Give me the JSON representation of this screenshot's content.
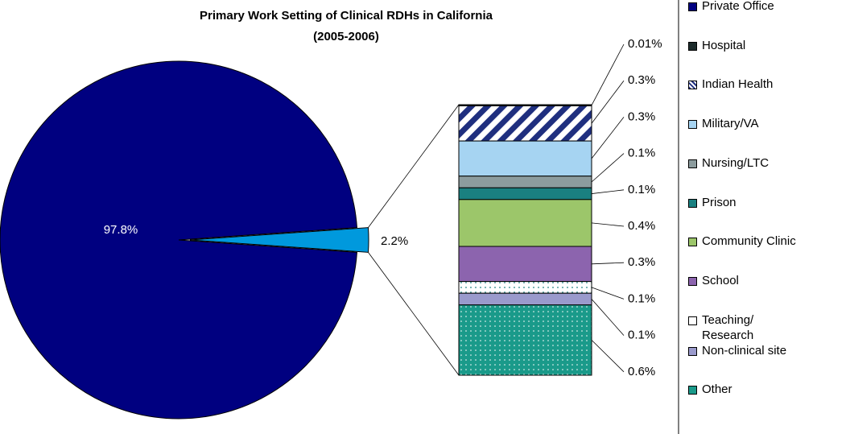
{
  "chart_data": {
    "type": "pie-of-bar",
    "title": "Primary Work Setting of Clinical RDHs in California",
    "subtitle": "(2005-2006)",
    "categories": [
      "Private Office",
      "Hospital",
      "Indian Health",
      "Military/VA",
      "Nursing/LTC",
      "Prison",
      "Community Clinic",
      "School",
      "Teaching/\nResearch",
      "Non-clinical site",
      "Other"
    ],
    "colors": [
      "#000080",
      "#1c2b2b",
      "#1f2f7f",
      "#a6d4f2",
      "#8c9c9e",
      "#1a8080",
      "#9cc66a",
      "#8c64ae",
      "#ffffff",
      "#9a9acc",
      "#1a9a8a"
    ],
    "patterns": [
      null,
      null,
      "hatch",
      null,
      null,
      null,
      null,
      null,
      "dots",
      null,
      "dots"
    ],
    "pie": {
      "values": [
        97.8,
        2.2
      ],
      "value_labels": [
        "97.8%",
        "2.2%"
      ],
      "colors": [
        "#000080",
        "#0099dd"
      ]
    },
    "bar": {
      "values": [
        0.01,
        0.3,
        0.3,
        0.1,
        0.1,
        0.4,
        0.3,
        0.1,
        0.1,
        0.6
      ],
      "value_labels": [
        "0.01%",
        "0.3%",
        "0.3%",
        "0.1%",
        "0.1%",
        "0.4%",
        "0.3%",
        "0.1%",
        "0.1%",
        "0.6%"
      ]
    }
  }
}
